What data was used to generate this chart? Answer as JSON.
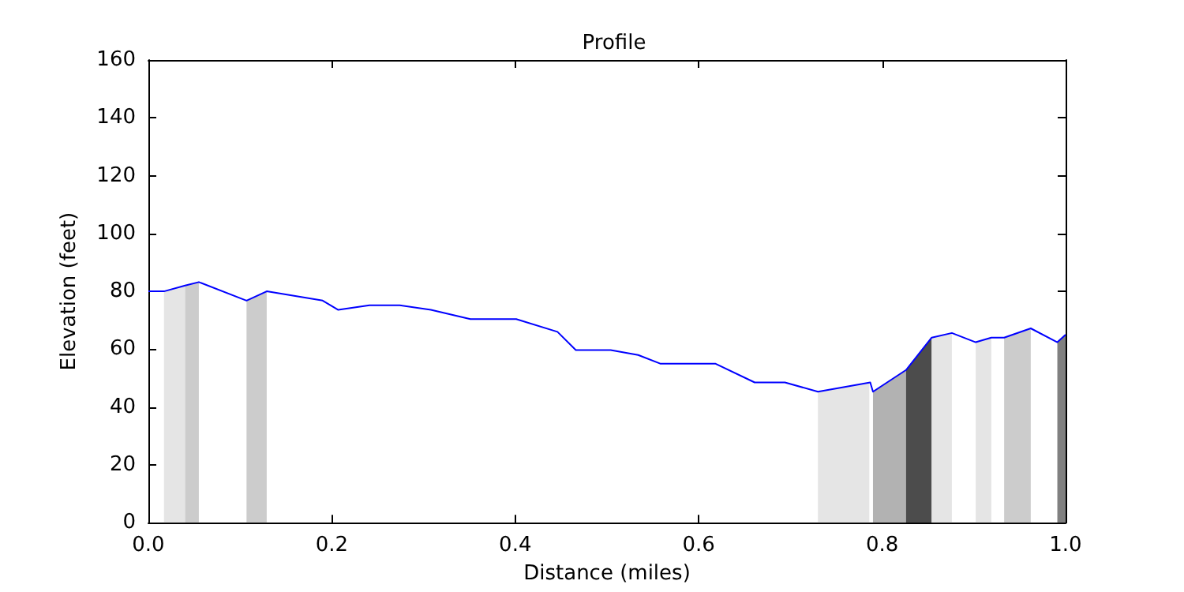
{
  "chart_data": {
    "type": "line",
    "title": "Profile",
    "xlabel": "Distance (miles)",
    "ylabel": "Elevation (feet)",
    "xlim": [
      0,
      1
    ],
    "ylim": [
      0,
      160
    ],
    "xticks": [
      {
        "value": 0,
        "label": "0.0"
      },
      0.2,
      0.4,
      0.6,
      0.8,
      {
        "value": 1,
        "label": "1.0"
      }
    ],
    "yticks": [
      0,
      20,
      40,
      60,
      80,
      100,
      120,
      140,
      160
    ],
    "grid": false,
    "marker": "none",
    "line_style": "solid",
    "series": [
      {
        "type": "area",
        "color": "#e5e5e5",
        "x": [
          0.017,
          0.04
        ],
        "values": [
          80,
          82
        ]
      },
      {
        "type": "area",
        "color": "#cccccc",
        "x": [
          0.04,
          0.055
        ],
        "values": [
          82,
          83.2
        ]
      },
      {
        "type": "area",
        "color": "#cccccc",
        "x": [
          0.107,
          0.129
        ],
        "values": [
          76.8,
          80
        ]
      },
      {
        "type": "area",
        "color": "#e5e5e5",
        "x": [
          0.73,
          0.786
        ],
        "values": [
          45.3,
          48.4
        ]
      },
      {
        "type": "area",
        "color": "#b2b2b2",
        "x": [
          0.79,
          0.826
        ],
        "values": [
          45.3,
          52.8
        ]
      },
      {
        "type": "area",
        "color": "#4c4c4c",
        "x": [
          0.826,
          0.854
        ],
        "values": [
          52.8,
          64
        ]
      },
      {
        "type": "area",
        "color": "#e5e5e5",
        "x": [
          0.854,
          0.876
        ],
        "values": [
          64,
          65.6
        ]
      },
      {
        "type": "area",
        "color": "#e5e5e5",
        "x": [
          0.902,
          0.919
        ],
        "values": [
          62.4,
          64
        ]
      },
      {
        "type": "area",
        "color": "#cccccc",
        "x": [
          0.933,
          0.962
        ],
        "values": [
          64,
          67.2
        ]
      },
      {
        "type": "area",
        "color": "#808080",
        "x": [
          0.991,
          1.0
        ],
        "values": [
          62.4,
          65
        ]
      },
      {
        "color": "#0000ff",
        "x": [
          0,
          0.017,
          0.04,
          0.055,
          0.107,
          0.129,
          0.19,
          0.207,
          0.241,
          0.274,
          0.308,
          0.351,
          0.401,
          0.446,
          0.466,
          0.504,
          0.534,
          0.558,
          0.618,
          0.661,
          0.694,
          0.73,
          0.787,
          0.79,
          0.826,
          0.854,
          0.876,
          0.902,
          0.919,
          0.933,
          0.962,
          0.991,
          1.0
        ],
        "values": [
          80,
          80,
          82,
          83.2,
          76.8,
          80,
          76.8,
          73.6,
          75.2,
          75.2,
          73.6,
          70.4,
          70.4,
          66,
          59.7,
          59.7,
          58,
          55,
          55,
          48.5,
          48.5,
          45.3,
          48.5,
          45.3,
          52.8,
          64,
          65.6,
          62.4,
          64,
          64,
          67.2,
          62.4,
          65
        ]
      }
    ]
  }
}
